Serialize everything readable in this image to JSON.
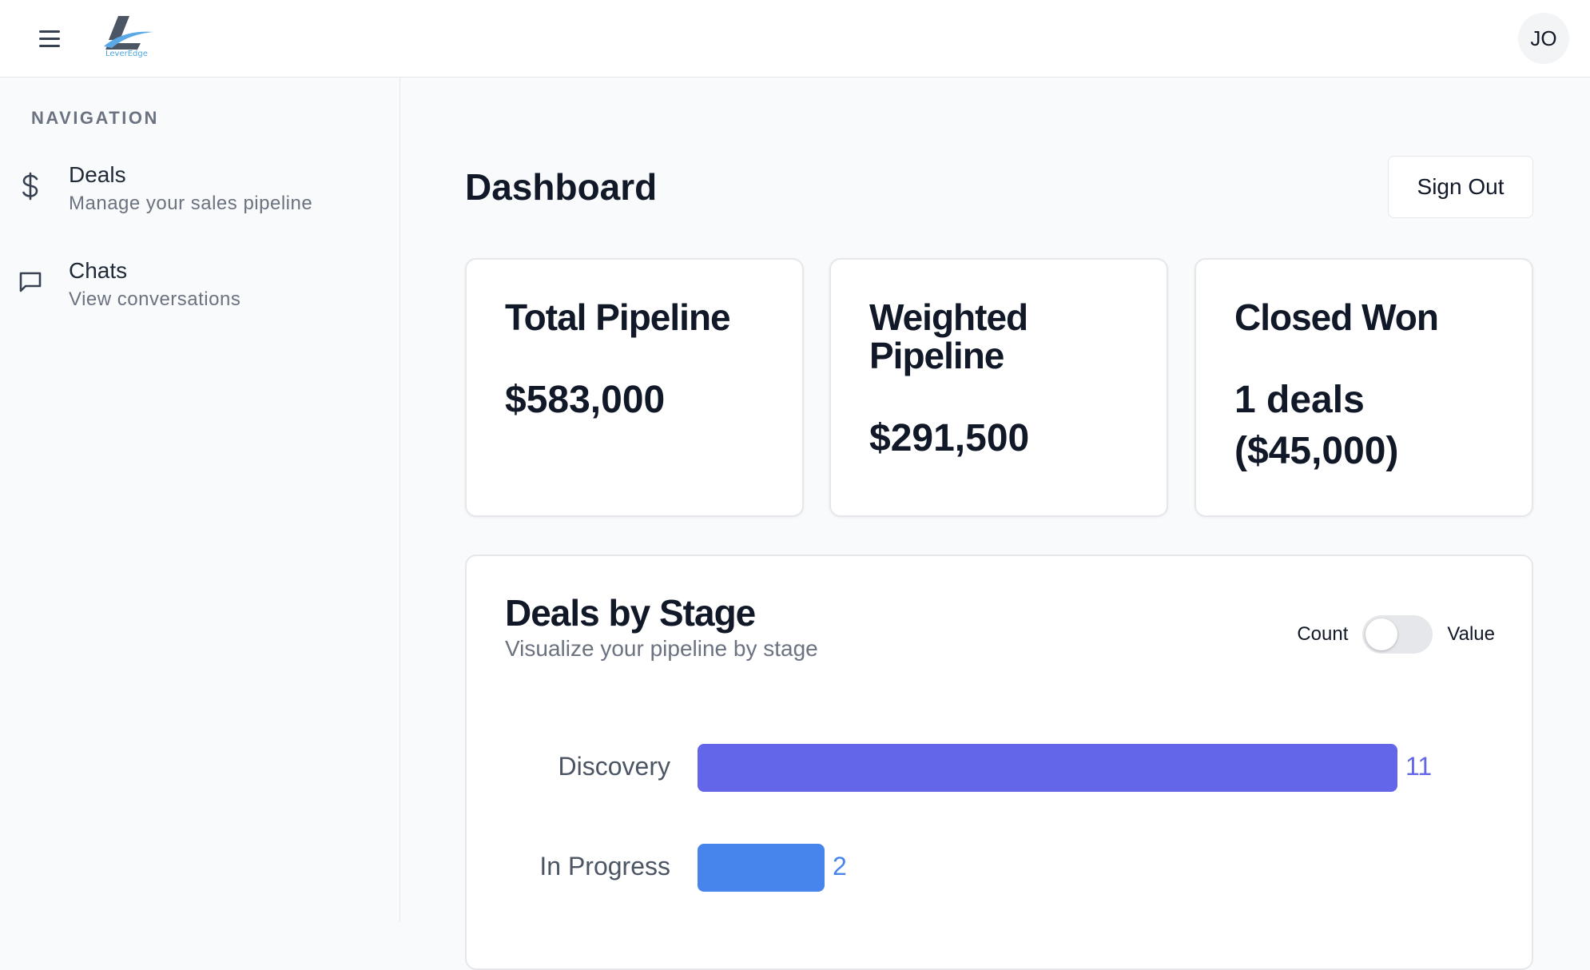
{
  "header": {
    "logo_text": "LeverEdge",
    "avatar_initials": "JO"
  },
  "sidebar": {
    "heading": "NAVIGATION",
    "items": [
      {
        "title": "Deals",
        "subtitle": "Manage your sales pipeline",
        "icon": "dollar-icon"
      },
      {
        "title": "Chats",
        "subtitle": "View conversations",
        "icon": "chat-bubble-icon"
      }
    ]
  },
  "main": {
    "title": "Dashboard",
    "signout_label": "Sign Out",
    "cards": [
      {
        "title": "Total Pipeline",
        "value": "$583,000"
      },
      {
        "title": "Weighted Pipeline",
        "value": "$291,500"
      },
      {
        "title": "Closed Won",
        "value": "1 deals ($45,000)"
      }
    ]
  },
  "stage_chart": {
    "title": "Deals by Stage",
    "subtitle": "Visualize your pipeline by stage",
    "toggle": {
      "left_label": "Count",
      "right_label": "Value",
      "selected": "Count"
    },
    "colors": {
      "discovery": "#6366e8",
      "in_progress": "#4785ec"
    }
  },
  "chart_data": {
    "type": "bar",
    "orientation": "horizontal",
    "categories": [
      "Discovery",
      "In Progress"
    ],
    "values": [
      11,
      2
    ]
  }
}
